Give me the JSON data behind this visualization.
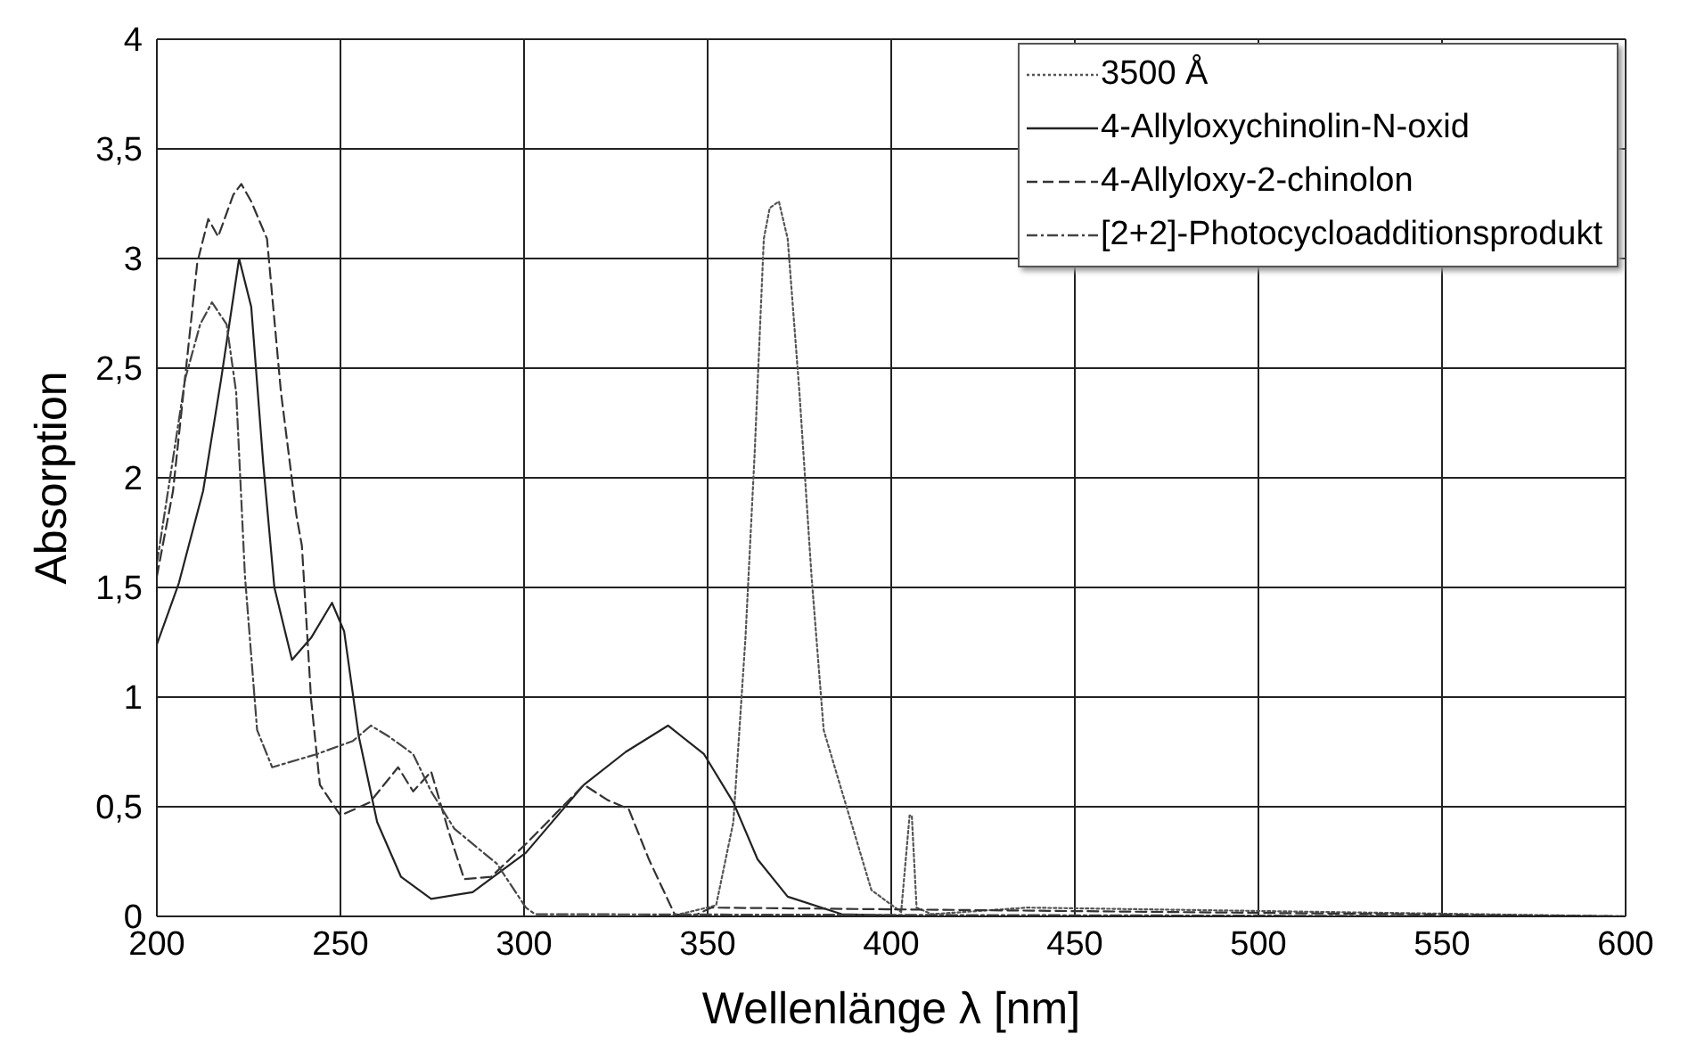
{
  "chart_data": {
    "type": "line",
    "xlabel": "Wellenlänge λ [nm]",
    "ylabel": "Absorption",
    "xlim": [
      200,
      600
    ],
    "xticks": [
      200,
      250,
      300,
      350,
      400,
      450,
      500,
      550,
      600
    ],
    "ylim": [
      0,
      4
    ],
    "yticks": [
      0,
      {
        "value": 0.5,
        "label": "0,5"
      },
      1,
      {
        "value": 1.5,
        "label": "1,5"
      },
      2,
      {
        "value": 2.5,
        "label": "2,5"
      },
      3,
      {
        "value": 3.5,
        "label": "3,5"
      },
      4
    ],
    "grid": true,
    "legend": "top right",
    "marker": "none",
    "series": [
      {
        "name": "3500 Å",
        "color": "#555555",
        "line_style": "dotted",
        "x": [
          200,
          340,
          352.3,
          357,
          360.3,
          362.8,
          365.3,
          366.9,
          369.4,
          371.8,
          375,
          378.3,
          381.6,
          388,
          394.6,
          402.7,
          405,
          405.6,
          406.9,
          411,
          437,
          600
        ],
        "values": [
          0,
          0,
          0.05,
          0.43,
          1.27,
          2.11,
          3.09,
          3.23,
          3.26,
          3.09,
          2.39,
          1.55,
          0.85,
          0.49,
          0.12,
          0.02,
          0.46,
          0.46,
          0.04,
          0.01,
          0.04,
          0
        ]
      },
      {
        "name": "4-Allyloxychinolin-N-oxid",
        "color": "#222222",
        "line_style": "solid",
        "x": [
          200,
          206,
          212.6,
          217.5,
          222.4,
          225.7,
          229,
          232,
          236.8,
          242,
          247.7,
          251,
          255,
          260,
          266.5,
          274.7,
          286,
          300.5,
          316.3,
          327.7,
          339.2,
          349,
          357,
          363.6,
          371.8,
          386.5,
          410,
          600
        ],
        "values": [
          1.24,
          1.52,
          1.94,
          2.45,
          3.0,
          2.78,
          2.06,
          1.5,
          1.17,
          1.27,
          1.43,
          1.3,
          0.82,
          0.43,
          0.18,
          0.08,
          0.11,
          0.29,
          0.6,
          0.75,
          0.87,
          0.74,
          0.52,
          0.26,
          0.09,
          0.01,
          0,
          0
        ]
      },
      {
        "name": "4-Allyloxy-2-chinolon",
        "color": "#333333",
        "line_style": "dashed",
        "x": [
          200,
          204.4,
          211,
          214,
          216.7,
          220.8,
          223,
          225.7,
          230,
          233.8,
          238,
          239.5,
          242,
          244.4,
          250,
          258,
          265.7,
          269.8,
          274.7,
          279.6,
          283.7,
          291,
          300.5,
          316.3,
          322.8,
          328.5,
          334,
          341,
          346,
          351,
          600
        ],
        "values": [
          1.55,
          1.94,
          2.98,
          3.18,
          3.1,
          3.29,
          3.34,
          3.26,
          3.09,
          2.39,
          1.83,
          1.69,
          0.99,
          0.6,
          0.46,
          0.52,
          0.68,
          0.57,
          0.66,
          0.38,
          0.17,
          0.18,
          0.33,
          0.6,
          0.53,
          0.49,
          0.26,
          0.01,
          0,
          0.04,
          0
        ]
      },
      {
        "name": "[2+2]-Photocycloadditionsprodukt",
        "color": "#444444",
        "line_style": "dashdot",
        "x": [
          200,
          203.6,
          207.7,
          211.8,
          215,
          219,
          221.6,
          224,
          227.3,
          231.4,
          243.6,
          253.4,
          258.3,
          263.2,
          269.8,
          274.7,
          281,
          292.6,
          300.5,
          303,
          600
        ],
        "values": [
          1.61,
          2.0,
          2.45,
          2.7,
          2.8,
          2.7,
          2.39,
          1.55,
          0.85,
          0.68,
          0.74,
          0.8,
          0.87,
          0.82,
          0.74,
          0.57,
          0.4,
          0.24,
          0.04,
          0.01,
          0
        ]
      }
    ]
  }
}
